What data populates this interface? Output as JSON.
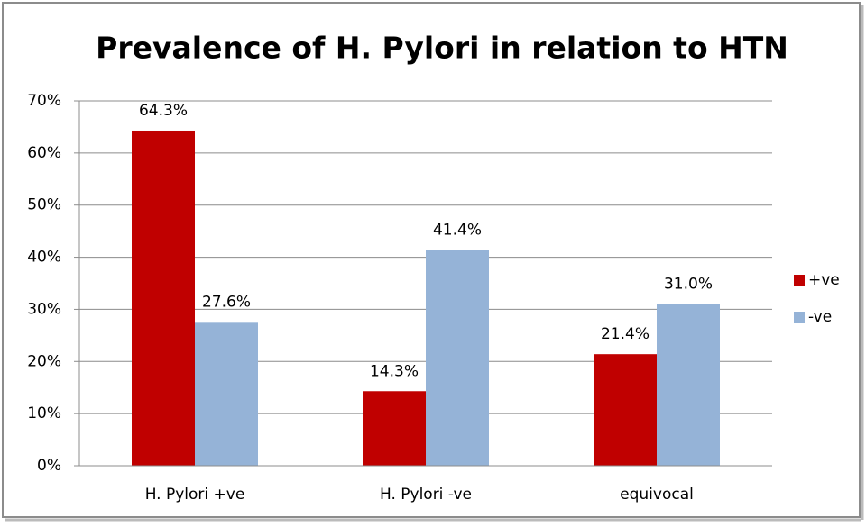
{
  "chart_data": {
    "type": "bar",
    "title": "Prevalence of H. Pylori in relation to HTN",
    "categories": [
      "H. Pylori +ve",
      "H. Pylori -ve",
      "equivocal"
    ],
    "series": [
      {
        "name": "+ve",
        "color": "#c00000",
        "values": [
          64.3,
          14.3,
          21.4
        ],
        "value_labels": [
          "64.3%",
          "14.3%",
          "21.4%"
        ]
      },
      {
        "name": "-ve",
        "color": "#95b3d7",
        "values": [
          27.6,
          41.4,
          31.0
        ],
        "value_labels": [
          "27.6%",
          "41.4%",
          "31.0%"
        ]
      }
    ],
    "ylim": [
      0,
      70
    ],
    "yticks": [
      {
        "value": 0,
        "label": "0%"
      },
      {
        "value": 10,
        "label": "10%"
      },
      {
        "value": 20,
        "label": "20%"
      },
      {
        "value": 30,
        "label": "30%"
      },
      {
        "value": 40,
        "label": "40%"
      },
      {
        "value": 50,
        "label": "50%"
      },
      {
        "value": 60,
        "label": "60%"
      },
      {
        "value": 70,
        "label": "70%"
      }
    ],
    "grid": true,
    "legend": "right"
  }
}
